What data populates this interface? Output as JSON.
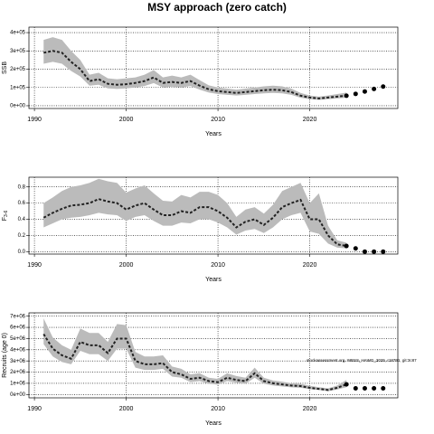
{
  "title": "MSY approach (zero catch)",
  "annotation": "stockassessment.org, WBSS_HAWG_2025, r18791, git:3c87",
  "chart_data": [
    {
      "type": "line",
      "ylabel": "SSB",
      "xlabel": "Years",
      "x": [
        1991,
        1992,
        1993,
        1994,
        1995,
        1996,
        1997,
        1998,
        1999,
        2000,
        2001,
        2002,
        2003,
        2004,
        2005,
        2006,
        2007,
        2008,
        2009,
        2010,
        2011,
        2012,
        2013,
        2014,
        2015,
        2016,
        2017,
        2018,
        2019,
        2020,
        2021,
        2022,
        2023,
        2024
      ],
      "values": [
        290000,
        300000,
        290000,
        240000,
        200000,
        135000,
        145000,
        120000,
        115000,
        118000,
        125000,
        135000,
        155000,
        125000,
        130000,
        125000,
        135000,
        110000,
        90000,
        80000,
        75000,
        70000,
        75000,
        80000,
        85000,
        88000,
        85000,
        75000,
        55000,
        45000,
        40000,
        45000,
        50000,
        55000
      ],
      "lower": [
        230000,
        240000,
        230000,
        190000,
        160000,
        110000,
        115000,
        95000,
        92000,
        95000,
        100000,
        108000,
        124000,
        100000,
        104000,
        100000,
        108000,
        88000,
        72000,
        64000,
        60000,
        56000,
        60000,
        64000,
        68000,
        70000,
        68000,
        60000,
        44000,
        36000,
        32000,
        36000,
        40000,
        44000
      ],
      "upper": [
        360000,
        375000,
        360000,
        300000,
        250000,
        170000,
        180000,
        150000,
        145000,
        150000,
        155000,
        170000,
        195000,
        155000,
        165000,
        155000,
        170000,
        140000,
        112000,
        100000,
        94000,
        88000,
        94000,
        100000,
        106000,
        110000,
        106000,
        94000,
        70000,
        56000,
        50000,
        56000,
        64000,
        72000
      ],
      "projection_x": [
        2024,
        2025,
        2026,
        2027,
        2028
      ],
      "projection": [
        55000,
        65000,
        78000,
        92000,
        105000
      ],
      "xlim": [
        1989.4,
        2029.6
      ],
      "xticks": [
        1990,
        2000,
        2010,
        2020
      ],
      "ylim": [
        -15000,
        430000
      ],
      "yticks": [
        {
          "value": 0,
          "label": "0e+00"
        },
        {
          "value": 100000,
          "label": "1e+05"
        },
        {
          "value": 200000,
          "label": "2e+05"
        },
        {
          "value": 300000,
          "label": "3e+05"
        },
        {
          "value": 400000,
          "label": "4e+05"
        }
      ],
      "grid": true,
      "color": "#222222",
      "band_color": "#bbbbbb"
    },
    {
      "type": "line",
      "ylabel": "F",
      "ylabel_subscript": "3-6",
      "xlabel": "Years",
      "x": [
        1991,
        1992,
        1993,
        1994,
        1995,
        1996,
        1997,
        1998,
        1999,
        2000,
        2001,
        2002,
        2003,
        2004,
        2005,
        2006,
        2007,
        2008,
        2009,
        2010,
        2011,
        2012,
        2013,
        2014,
        2015,
        2016,
        2017,
        2018,
        2019,
        2020,
        2021,
        2022,
        2023,
        2024
      ],
      "values": [
        0.42,
        0.48,
        0.53,
        0.57,
        0.58,
        0.6,
        0.65,
        0.62,
        0.6,
        0.52,
        0.57,
        0.6,
        0.52,
        0.45,
        0.45,
        0.5,
        0.48,
        0.55,
        0.55,
        0.5,
        0.42,
        0.3,
        0.37,
        0.4,
        0.33,
        0.42,
        0.55,
        0.6,
        0.64,
        0.4,
        0.4,
        0.2,
        0.09,
        0.07
      ],
      "lower": [
        0.3,
        0.35,
        0.4,
        0.42,
        0.43,
        0.45,
        0.48,
        0.46,
        0.45,
        0.38,
        0.43,
        0.45,
        0.38,
        0.32,
        0.32,
        0.36,
        0.35,
        0.4,
        0.4,
        0.36,
        0.3,
        0.21,
        0.26,
        0.28,
        0.23,
        0.3,
        0.4,
        0.45,
        0.48,
        0.25,
        0.22,
        0.1,
        0.05,
        0.04
      ],
      "upper": [
        0.6,
        0.67,
        0.75,
        0.8,
        0.82,
        0.85,
        0.9,
        0.87,
        0.85,
        0.73,
        0.78,
        0.82,
        0.72,
        0.63,
        0.62,
        0.7,
        0.67,
        0.74,
        0.74,
        0.7,
        0.6,
        0.43,
        0.52,
        0.55,
        0.47,
        0.58,
        0.75,
        0.8,
        0.85,
        0.6,
        0.72,
        0.32,
        0.14,
        0.11
      ],
      "projection_x": [
        2024,
        2025,
        2026,
        2027,
        2028
      ],
      "projection": [
        0.07,
        0.04,
        0,
        0,
        0
      ],
      "xlim": [
        1989.4,
        2029.6
      ],
      "xticks": [
        1990,
        2000,
        2010,
        2020
      ],
      "ylim": [
        -0.03,
        0.92
      ],
      "yticks": [
        {
          "value": 0,
          "label": "0.0"
        },
        0.2,
        0.4,
        0.6,
        0.8
      ],
      "grid": true,
      "color": "#222222",
      "band_color": "#bbbbbb"
    },
    {
      "type": "line",
      "ylabel": "Recruits (age 0)",
      "xlabel": "Years",
      "x": [
        1991,
        1992,
        1993,
        1994,
        1995,
        1996,
        1997,
        1998,
        1999,
        2000,
        2001,
        2002,
        2003,
        2004,
        2005,
        2006,
        2007,
        2008,
        2009,
        2010,
        2011,
        2012,
        2013,
        2014,
        2015,
        2016,
        2017,
        2018,
        2019,
        2020,
        2021,
        2022,
        2023,
        2024
      ],
      "values": [
        5400000,
        4100000,
        3500000,
        3200000,
        4700000,
        4400000,
        4400000,
        3700000,
        5000000,
        5000000,
        3000000,
        2700000,
        2700000,
        2800000,
        2000000,
        1800000,
        1400000,
        1500000,
        1200000,
        1100000,
        1500000,
        1300000,
        1200000,
        1900000,
        1200000,
        1000000,
        900000,
        800000,
        750000,
        600000,
        500000,
        400000,
        600000,
        900000
      ],
      "lower": [
        4500000,
        3400000,
        2900000,
        2700000,
        3900000,
        3600000,
        3600000,
        3000000,
        4100000,
        4100000,
        2400000,
        2200000,
        2200000,
        2300000,
        1600000,
        1500000,
        1100000,
        1200000,
        950000,
        880000,
        1200000,
        1050000,
        950000,
        1500000,
        950000,
        800000,
        720000,
        640000,
        600000,
        480000,
        400000,
        300000,
        450000,
        650000
      ],
      "upper": [
        6800000,
        5100000,
        4400000,
        4000000,
        5900000,
        5500000,
        5500000,
        4700000,
        6300000,
        6200000,
        3800000,
        3400000,
        3400000,
        3500000,
        2500000,
        2300000,
        1800000,
        1900000,
        1500000,
        1400000,
        1900000,
        1650000,
        1500000,
        2400000,
        1500000,
        1250000,
        1150000,
        1000000,
        950000,
        780000,
        650000,
        550000,
        800000,
        1300000
      ],
      "projection_x": [
        2024,
        2025,
        2026,
        2027,
        2028
      ],
      "projection": [
        900000,
        550000,
        550000,
        550000,
        550000
      ],
      "xlim": [
        1989.4,
        2029.6
      ],
      "xticks": [
        1990,
        2000,
        2010,
        2020
      ],
      "ylim": [
        -300000,
        7300000
      ],
      "yticks": [
        {
          "value": 0,
          "label": "0e+00"
        },
        {
          "value": 1000000,
          "label": "1e+06"
        },
        {
          "value": 2000000,
          "label": "2e+06"
        },
        {
          "value": 3000000,
          "label": "3e+06"
        },
        {
          "value": 4000000,
          "label": "4e+06"
        },
        {
          "value": 5000000,
          "label": "5e+06"
        },
        {
          "value": 6000000,
          "label": "6e+06"
        },
        {
          "value": 7000000,
          "label": "7e+06"
        }
      ],
      "grid": true,
      "color": "#222222",
      "band_color": "#bbbbbb"
    }
  ]
}
